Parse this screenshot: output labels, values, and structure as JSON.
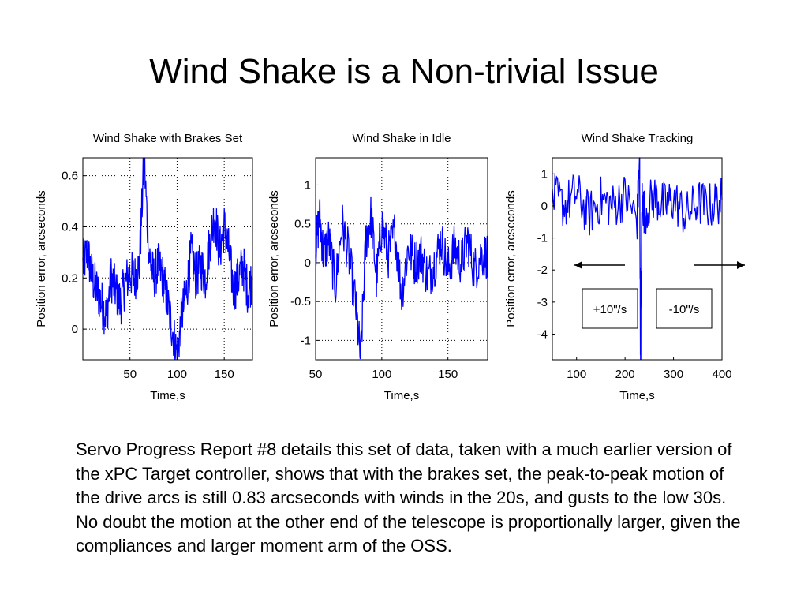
{
  "slide": {
    "title": "Wind Shake is a Non-trivial Issue",
    "body": "Servo Progress Report #8 details this set of data, taken with a much earlier version of the xPC Target controller, shows that with the brakes set, the peak-to-peak motion of the drive arcs is still 0.83 arcseconds with winds in the 20s, and gusts to the low 30s. No doubt the motion at the other end of the telescope is proportionally larger, given the compliances and larger moment arm of the OSS."
  },
  "colors": {
    "trace": "#0000ff",
    "grid": "#000000",
    "axes": "#000000",
    "background": "#ffffff"
  },
  "chart_data": [
    {
      "type": "line",
      "title": "Wind Shake with Brakes Set",
      "xlabel": "Time,s",
      "ylabel": "Position error, arcseconds",
      "xlim": [
        0,
        180
      ],
      "ylim": [
        -0.12,
        0.67
      ],
      "xticks": [
        50,
        100,
        150
      ],
      "yticks": [
        0,
        0.2,
        0.4,
        0.6
      ],
      "xticklabels": [
        "50",
        "100",
        "150"
      ],
      "yticklabels": [
        "0",
        "0.2",
        "0.4",
        "0.6"
      ],
      "grid": true,
      "series": [
        {
          "x": [
            0,
            5,
            10,
            15,
            20,
            25,
            30,
            35,
            40,
            45,
            50,
            55,
            60,
            65,
            70,
            75,
            80,
            85,
            90,
            95,
            100,
            105,
            110,
            115,
            120,
            125,
            130,
            135,
            140,
            145,
            150,
            155,
            160,
            165,
            170,
            175,
            180
          ],
          "y": [
            0.25,
            0.3,
            0.2,
            0.15,
            0.1,
            0.05,
            0.2,
            0.15,
            0.1,
            0.18,
            0.22,
            0.2,
            0.25,
            0.67,
            0.3,
            0.2,
            0.25,
            0.2,
            0.1,
            0.0,
            -0.1,
            0.05,
            0.15,
            0.3,
            0.2,
            0.25,
            0.2,
            0.35,
            0.45,
            0.3,
            0.4,
            0.3,
            0.15,
            0.2,
            0.25,
            0.15,
            0.2
          ]
        }
      ]
    },
    {
      "type": "line",
      "title": "Wind Shake in Idle",
      "xlabel": "Time,s",
      "ylabel": "Position error, arcseconds",
      "xlim": [
        50,
        180
      ],
      "ylim": [
        -1.25,
        1.35
      ],
      "xticks": [
        50,
        100,
        150
      ],
      "yticks": [
        -1,
        -0.5,
        0,
        0.5,
        1
      ],
      "xticklabels": [
        "50",
        "100",
        "150"
      ],
      "yticklabels": [
        "-1",
        "-0.5",
        "0",
        "0.5",
        "1"
      ],
      "grid": true,
      "series": [
        {
          "x": [
            50,
            53,
            56,
            60,
            65,
            70,
            75,
            80,
            84,
            88,
            92,
            96,
            100,
            105,
            110,
            115,
            120,
            125,
            130,
            135,
            140,
            145,
            150,
            155,
            160,
            165,
            170,
            175,
            180
          ],
          "y": [
            0.2,
            0.6,
            0.1,
            0.3,
            -0.3,
            0.5,
            0.1,
            -0.5,
            -1.25,
            0.3,
            0.6,
            -0.2,
            0.5,
            0.1,
            0.4,
            -0.4,
            0.2,
            0.0,
            0.1,
            -0.2,
            0.0,
            0.3,
            -0.1,
            0.2,
            0.0,
            0.3,
            -0.1,
            0.1,
            0.1
          ]
        }
      ]
    },
    {
      "type": "line",
      "title": "Wind Shake Tracking",
      "xlabel": "Time,s",
      "ylabel": "Position error, arcseconds",
      "xlim": [
        50,
        400
      ],
      "ylim": [
        -4.8,
        1.5
      ],
      "xticks": [
        100,
        200,
        300,
        400
      ],
      "yticks": [
        -4,
        -3,
        -2,
        -1,
        0,
        1
      ],
      "xticklabels": [
        "100",
        "200",
        "300",
        "400"
      ],
      "yticklabels": [
        "-4",
        "-3",
        "-2",
        "-1",
        "0",
        "1"
      ],
      "grid": false,
      "series": [
        {
          "x": [
            50,
            75,
            100,
            125,
            150,
            175,
            200,
            225,
            230,
            232,
            235,
            240,
            260,
            280,
            300,
            325,
            350,
            375,
            400
          ],
          "y": [
            0.3,
            0.0,
            0.4,
            -0.3,
            0.2,
            0.0,
            0.3,
            -0.4,
            1.5,
            -4.8,
            0.2,
            -0.2,
            0.3,
            0.0,
            0.2,
            -0.3,
            0.1,
            0.0,
            0.2
          ]
        }
      ],
      "annotations": [
        {
          "text": "+10\"/s",
          "direction": "left"
        },
        {
          "text": "-10\"/s",
          "direction": "right"
        }
      ]
    }
  ]
}
